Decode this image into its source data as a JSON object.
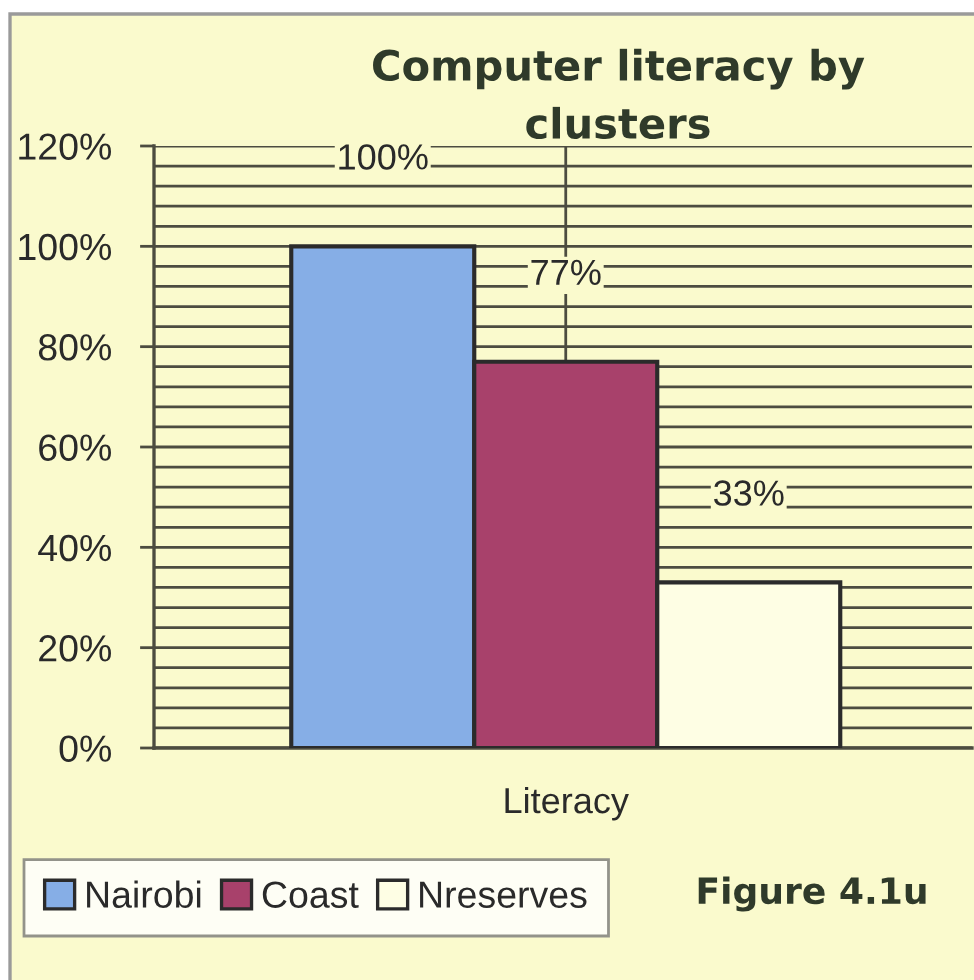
{
  "chart_data": {
    "type": "bar",
    "title": "Computer literacy by\nclusters",
    "categories": [
      "Literacy"
    ],
    "series": [
      {
        "name": "Nairobi",
        "color": "#86aee6",
        "values": [
          100
        ],
        "value_labels": [
          "100%"
        ]
      },
      {
        "name": "Coast",
        "color": "#a8416b",
        "values": [
          77
        ],
        "value_labels": [
          "77%"
        ]
      },
      {
        "name": "Nreserves",
        "color": "#fefee4",
        "values": [
          33
        ],
        "value_labels": [
          "33%"
        ]
      }
    ],
    "ylim": [
      0,
      120
    ],
    "yticks": [
      {
        "value": 0,
        "label": "0%"
      },
      {
        "value": 4,
        "label": null
      },
      {
        "value": 8,
        "label": null
      },
      {
        "value": 12,
        "label": null
      },
      {
        "value": 16,
        "label": null
      },
      {
        "value": 20,
        "label": "20%"
      },
      {
        "value": 24,
        "label": null
      },
      {
        "value": 28,
        "label": null
      },
      {
        "value": 32,
        "label": null
      },
      {
        "value": 36,
        "label": null
      },
      {
        "value": 40,
        "label": "40%"
      },
      {
        "value": 44,
        "label": null
      },
      {
        "value": 48,
        "label": null
      },
      {
        "value": 52,
        "label": null
      },
      {
        "value": 56,
        "label": null
      },
      {
        "value": 60,
        "label": "60%"
      },
      {
        "value": 64,
        "label": null
      },
      {
        "value": 68,
        "label": null
      },
      {
        "value": 72,
        "label": null
      },
      {
        "value": 76,
        "label": null
      },
      {
        "value": 80,
        "label": "80%"
      },
      {
        "value": 84,
        "label": null
      },
      {
        "value": 88,
        "label": null
      },
      {
        "value": 92,
        "label": null
      },
      {
        "value": 96,
        "label": null
      },
      {
        "value": 100,
        "label": "100%"
      },
      {
        "value": 104,
        "label": null
      },
      {
        "value": 108,
        "label": null
      },
      {
        "value": 112,
        "label": null
      },
      {
        "value": 116,
        "label": null
      },
      {
        "value": 120,
        "label": "120%"
      }
    ],
    "grid": true,
    "legend": "bottom",
    "annotations": [
      "Figure 4.1u"
    ]
  }
}
